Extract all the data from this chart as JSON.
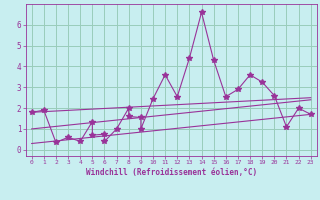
{
  "title": "",
  "xlabel": "Windchill (Refroidissement éolien,°C)",
  "ylabel": "",
  "bg_color": "#c8eef0",
  "line_color": "#993399",
  "grid_color": "#99ccbb",
  "xlim": [
    -0.5,
    23.5
  ],
  "ylim": [
    -0.3,
    7.0
  ],
  "xticks": [
    0,
    1,
    2,
    3,
    4,
    5,
    6,
    7,
    8,
    9,
    10,
    11,
    12,
    13,
    14,
    15,
    16,
    17,
    18,
    19,
    20,
    21,
    22,
    23
  ],
  "yticks": [
    0,
    1,
    2,
    3,
    4,
    5,
    6
  ],
  "scatter_x": [
    0,
    1,
    2,
    3,
    4,
    5,
    5,
    6,
    6,
    7,
    8,
    8,
    9,
    9,
    10,
    11,
    12,
    13,
    14,
    15,
    16,
    17,
    18,
    19,
    20,
    21,
    22,
    23
  ],
  "scatter_y": [
    1.8,
    1.9,
    0.35,
    0.6,
    0.4,
    1.35,
    0.7,
    0.75,
    0.4,
    1.0,
    2.0,
    1.6,
    1.55,
    1.0,
    2.45,
    3.6,
    2.55,
    4.4,
    6.6,
    4.3,
    2.55,
    2.9,
    3.6,
    3.25,
    2.6,
    1.1,
    2.0,
    1.7
  ],
  "line1_x": [
    0,
    23
  ],
  "line1_y": [
    1.8,
    2.5
  ],
  "line2_x": [
    0,
    23
  ],
  "line2_y": [
    1.0,
    2.4
  ],
  "line3_x": [
    0,
    23
  ],
  "line3_y": [
    0.3,
    1.7
  ],
  "marker": "*",
  "markersize": 4,
  "linewidth": 0.8
}
